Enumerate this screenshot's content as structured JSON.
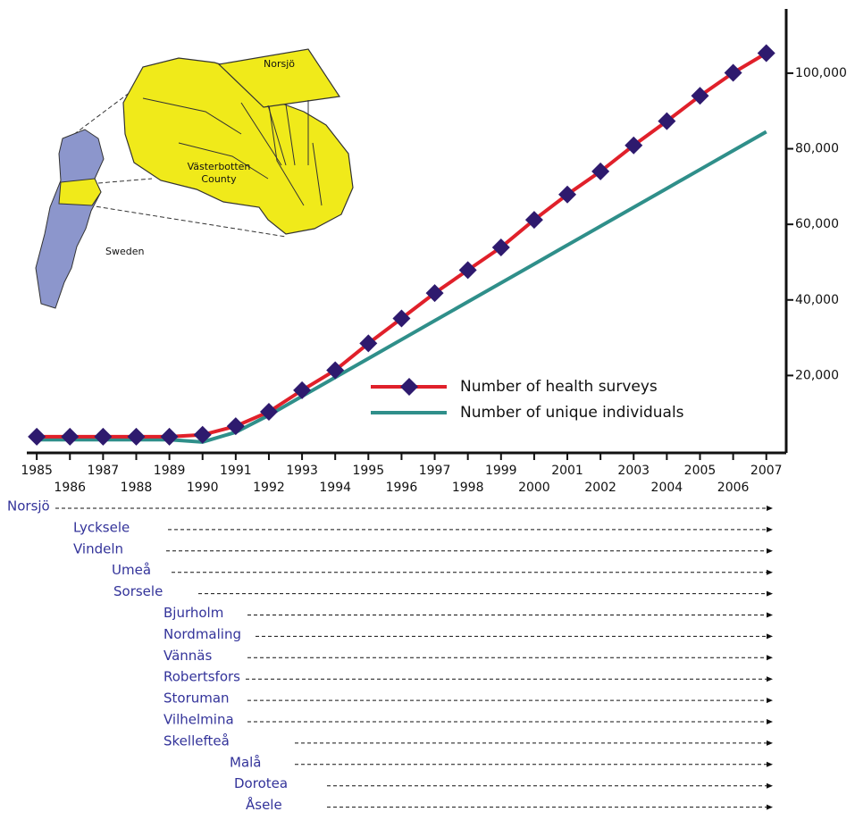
{
  "chart_data": {
    "type": "line",
    "x": [
      1985,
      1986,
      1987,
      1988,
      1989,
      1990,
      1991,
      1992,
      1993,
      1994,
      1995,
      1996,
      1997,
      1998,
      1999,
      2000,
      2001,
      2002,
      2003,
      2004,
      2005,
      2006,
      2007
    ],
    "xlim": [
      1984.7,
      2007.6
    ],
    "xticks": [
      1985,
      1986,
      1987,
      1988,
      1989,
      1990,
      1991,
      1992,
      1993,
      1994,
      1995,
      1996,
      1997,
      1998,
      1999,
      2000,
      2001,
      2002,
      2003,
      2004,
      2005,
      2006,
      2007
    ],
    "ylim": [
      0,
      117000
    ],
    "yticks": [
      {
        "value": 20000,
        "label": "20,000"
      },
      {
        "value": 40000,
        "label": "40,000"
      },
      {
        "value": 60000,
        "label": "60,000"
      },
      {
        "value": 80000,
        "label": "80,000"
      },
      {
        "value": 100000,
        "label": "100,000"
      }
    ],
    "series": [
      {
        "name": "Number of health surveys",
        "color": "#e0202a",
        "marker_color": "#2e1a6e",
        "values": [
          3800,
          3800,
          3800,
          3800,
          3800,
          4300,
          6600,
          10400,
          16100,
          21400,
          28500,
          35100,
          41800,
          47900,
          53900,
          61200,
          67900,
          74000,
          80900,
          87300,
          94000,
          100100,
          105300
        ]
      },
      {
        "name": "Number of unique individuals",
        "color": "#2f8f8a",
        "values": [
          3000,
          3000,
          3000,
          3000,
          3000,
          2400,
          5000,
          9500,
          14500,
          19500,
          24500,
          29500,
          34500,
          39500,
          44500,
          49500,
          54500,
          59500,
          64500,
          69500,
          74500,
          79500,
          84500
        ]
      }
    ]
  },
  "map": {
    "norsjo": "Norsjö",
    "county_line1": "Västerbotten",
    "county_line2": "County",
    "country": "Sweden"
  },
  "municipalities": [
    "Norsjö",
    "Lycksele",
    "Vindeln",
    "Umeå",
    "Sorsele",
    "Bjurholm",
    "Nordmaling",
    "Vännäs",
    "Robertsfors",
    "Storuman",
    "Vilhelmina",
    "Skellefteå",
    "Malå",
    "Dorotea",
    "Åsele"
  ]
}
